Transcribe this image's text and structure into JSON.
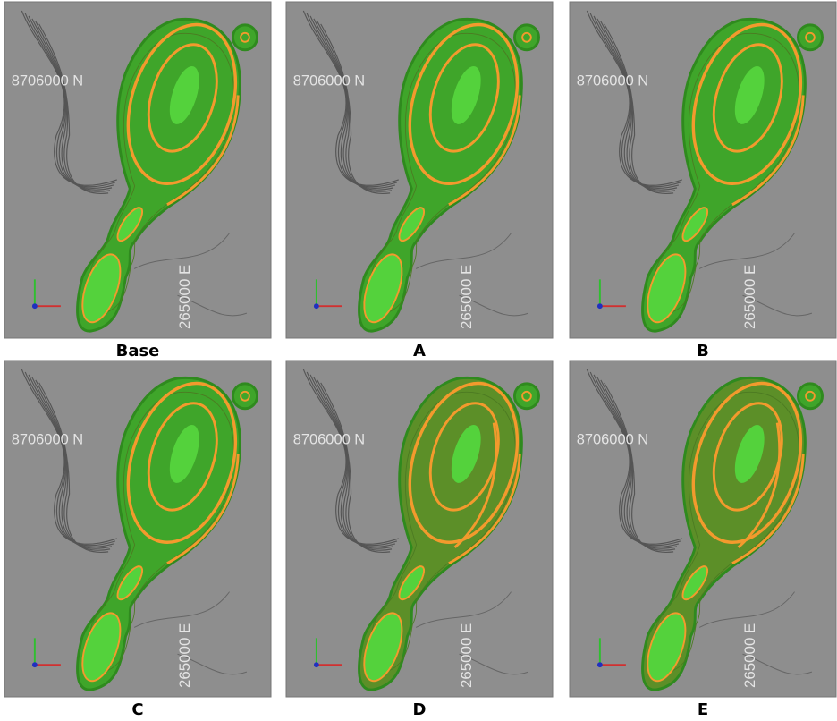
{
  "panels": [
    {
      "label": "Base",
      "northing": "8706000 N",
      "easting": "265000 E"
    },
    {
      "label": "A",
      "northing": "8706000 N",
      "easting": "265000 E"
    },
    {
      "label": "B",
      "northing": "8706000 N",
      "easting": "265000 E"
    },
    {
      "label": "C",
      "northing": "8706000 N",
      "easting": "265000 E"
    },
    {
      "label": "D",
      "northing": "8706000 N",
      "easting": "265000 E"
    },
    {
      "label": "E",
      "northing": "8706000 N",
      "easting": "265000 E"
    }
  ]
}
